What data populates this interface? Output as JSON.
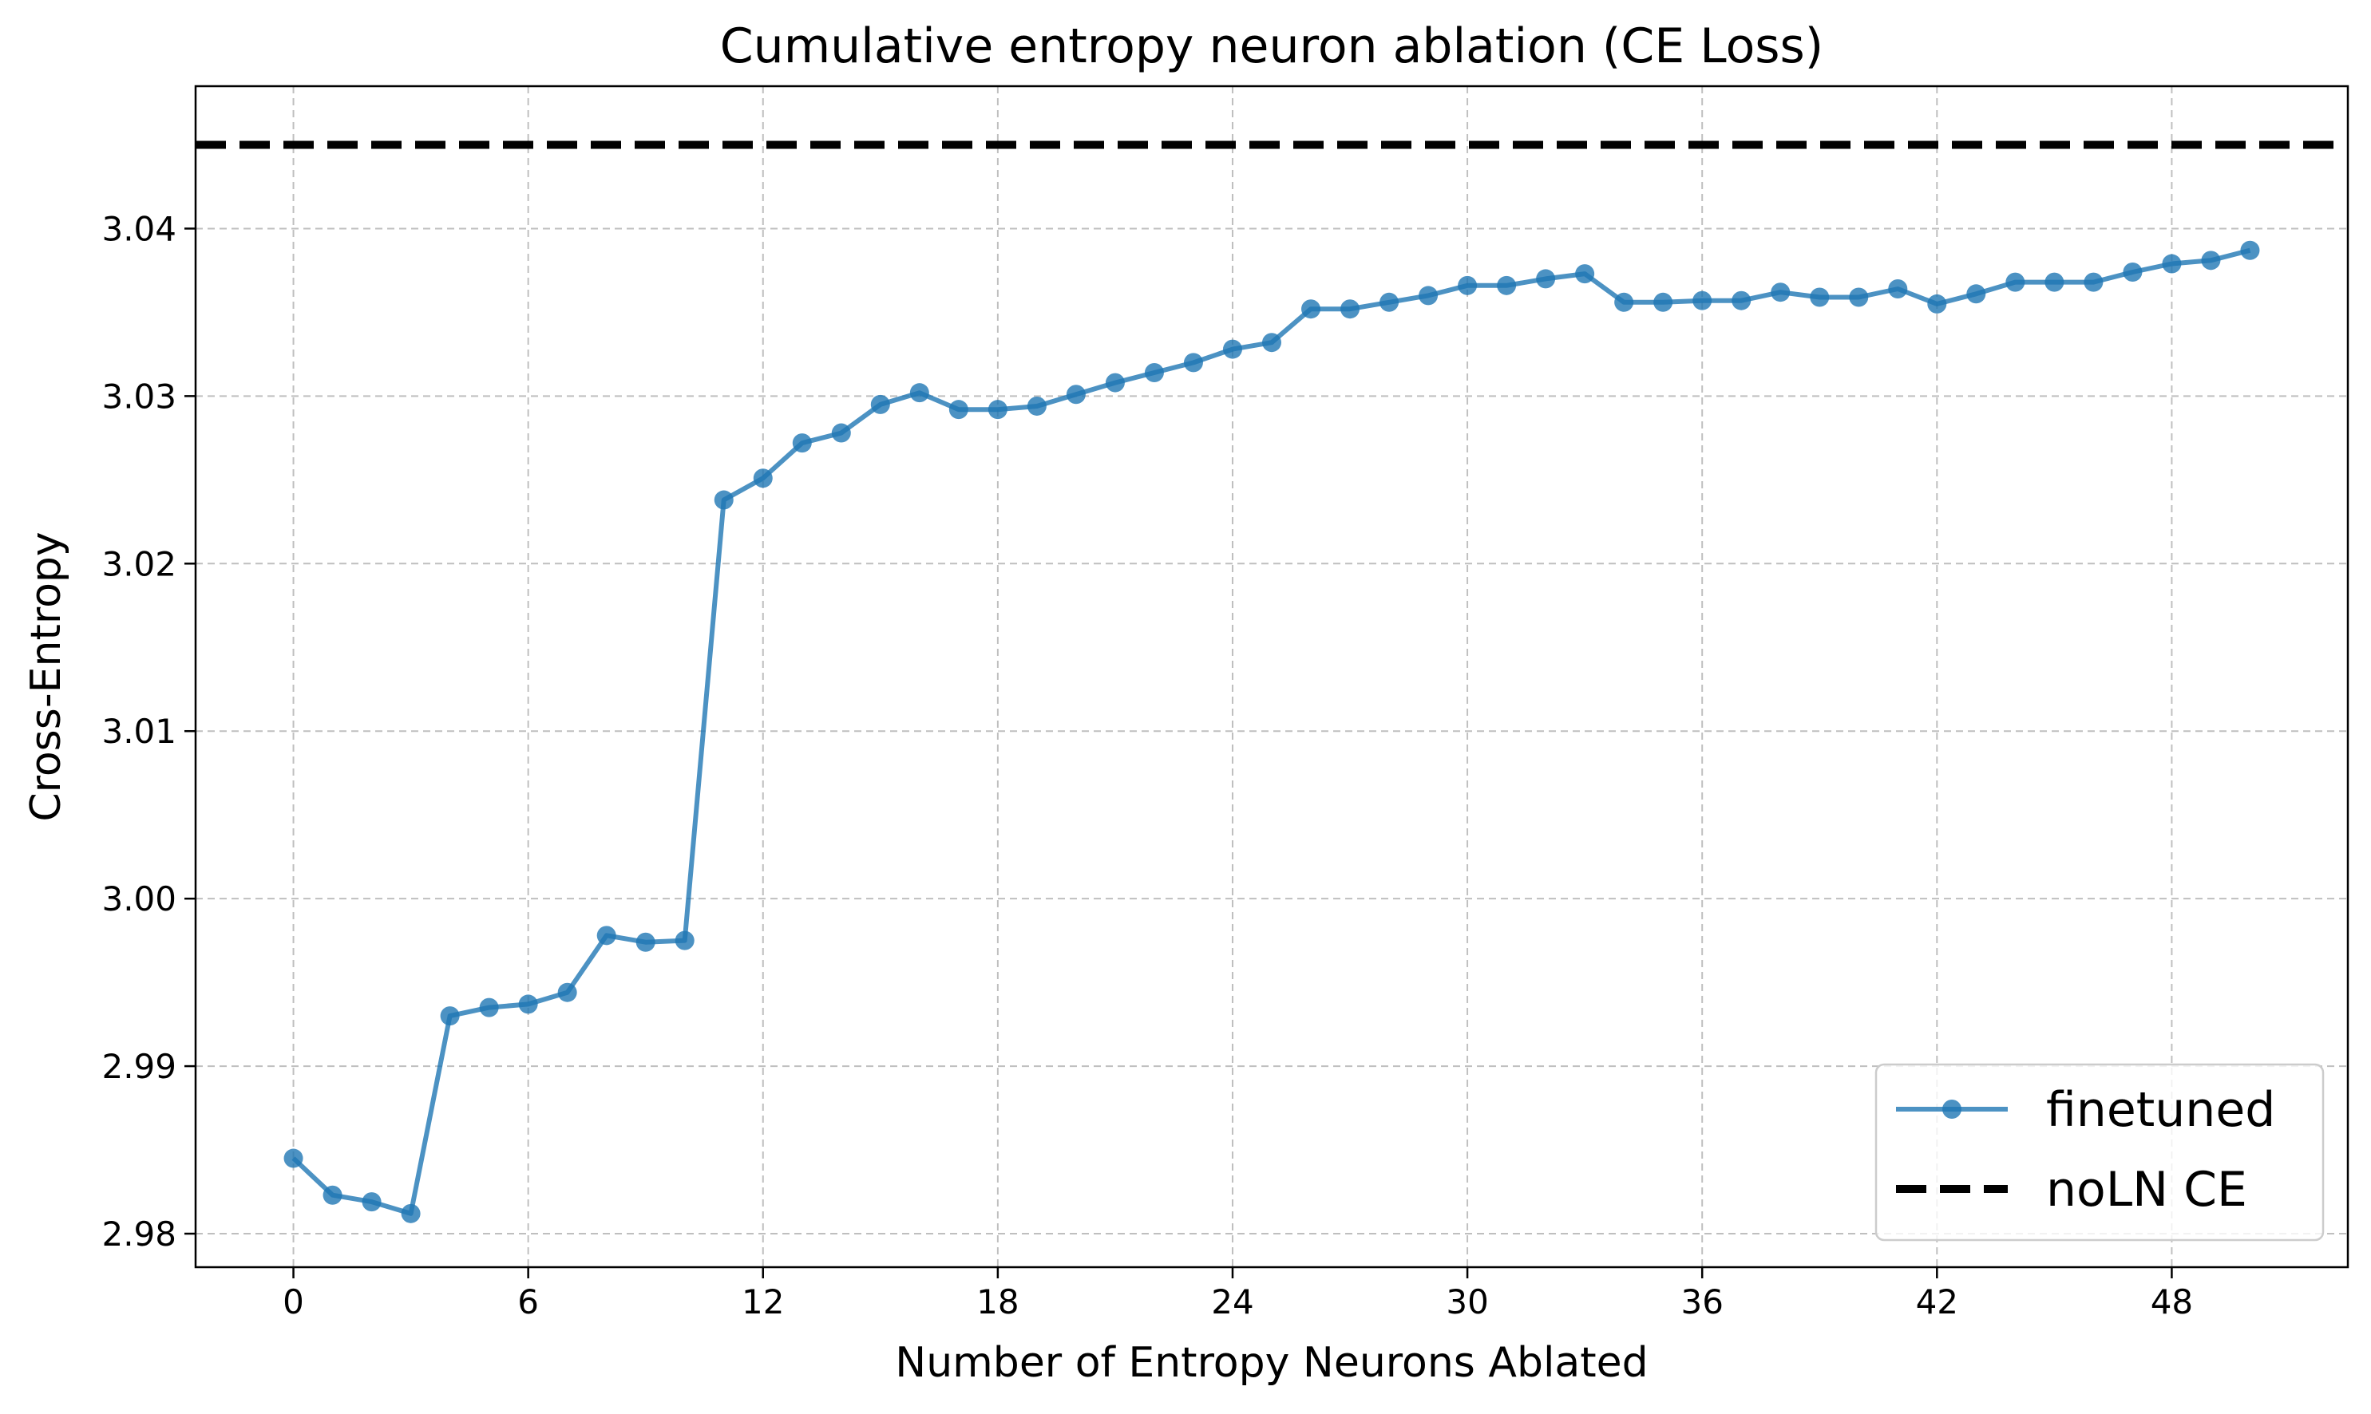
{
  "chart_data": {
    "type": "line",
    "title": "Cumulative entropy neuron ablation (CE Loss)",
    "xlabel": "Number of Entropy Neurons Ablated",
    "ylabel": "Cross-Entropy",
    "xlim": [
      -2.5,
      52.5
    ],
    "ylim": [
      2.978,
      3.0485
    ],
    "x_ticks": [
      0,
      6,
      12,
      18,
      24,
      30,
      36,
      42,
      48
    ],
    "x_tick_labels": [
      "0",
      "6",
      "12",
      "18",
      "24",
      "30",
      "36",
      "42",
      "48"
    ],
    "y_ticks": [
      2.98,
      2.99,
      3.0,
      3.01,
      3.02,
      3.03,
      3.04
    ],
    "y_tick_labels": [
      "2.98",
      "2.99",
      "3.00",
      "3.01",
      "3.02",
      "3.03",
      "3.04"
    ],
    "grid": true,
    "legend_position": "lower-right",
    "series": [
      {
        "name": "finetuned",
        "color": "#1f77b4",
        "style": "solid-with-markers",
        "x": [
          0,
          1,
          2,
          3,
          4,
          5,
          6,
          7,
          8,
          9,
          10,
          11,
          12,
          13,
          14,
          15,
          16,
          17,
          18,
          19,
          20,
          21,
          22,
          23,
          24,
          25,
          26,
          27,
          28,
          29,
          30,
          31,
          32,
          33,
          34,
          35,
          36,
          37,
          38,
          39,
          40,
          41,
          42,
          43,
          44,
          45,
          46,
          47,
          48,
          49,
          50
        ],
        "values": [
          2.9845,
          2.9823,
          2.9819,
          2.9812,
          2.993,
          2.9935,
          2.9937,
          2.9944,
          2.9978,
          2.9974,
          2.9975,
          3.0238,
          3.0251,
          3.0272,
          3.0278,
          3.0295,
          3.0302,
          3.0292,
          3.0292,
          3.0294,
          3.0301,
          3.0308,
          3.0314,
          3.032,
          3.0328,
          3.0332,
          3.0352,
          3.0352,
          3.0356,
          3.036,
          3.0366,
          3.0366,
          3.037,
          3.0373,
          3.0356,
          3.0356,
          3.0357,
          3.0357,
          3.0362,
          3.0359,
          3.0359,
          3.0364,
          3.0355,
          3.0361,
          3.0368,
          3.0368,
          3.0368,
          3.0374,
          3.0379,
          3.0381,
          3.0387
        ]
      },
      {
        "name": "noLN CE",
        "color": "#000000",
        "style": "dashed-horizontal",
        "value": 3.045
      }
    ]
  }
}
